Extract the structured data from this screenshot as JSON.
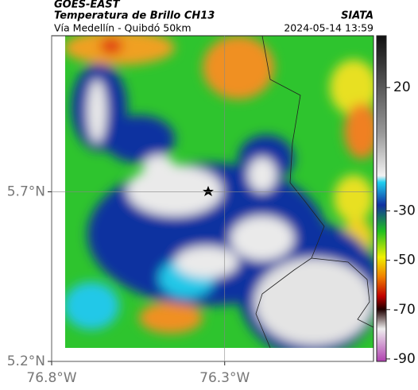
{
  "header": {
    "title": "GOES-EAST",
    "subtitle": "Temperatura de Brillo CH13",
    "source": "SIATA",
    "route": "Vía Medellín - Quibdó 50km",
    "timestamp": "2024-05-14 13:59"
  },
  "map": {
    "xlim": [
      -76.8,
      -75.87
    ],
    "ylim": [
      5.2,
      6.16
    ],
    "xticks": [
      {
        "value": -76.8,
        "label": "76.8°W"
      },
      {
        "value": -76.3,
        "label": "76.3°W"
      }
    ],
    "yticks": [
      {
        "value": 5.2,
        "label": "5.2°N"
      },
      {
        "value": 5.7,
        "label": "5.7°N"
      }
    ],
    "grid": true
  },
  "colorbar": {
    "lim": [
      -91,
      41
    ],
    "ticks": [
      20,
      -30,
      -50,
      -70,
      -90
    ]
  }
}
